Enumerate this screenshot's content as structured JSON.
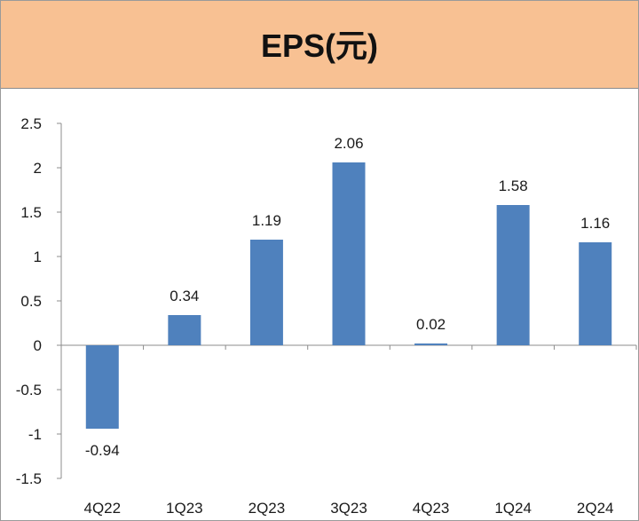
{
  "header": {
    "title": "EPS(元)"
  },
  "chart_data": {
    "type": "bar",
    "categories": [
      "4Q22",
      "1Q23",
      "2Q23",
      "3Q23",
      "4Q23",
      "1Q24",
      "2Q24"
    ],
    "values": [
      -0.94,
      0.34,
      1.19,
      2.06,
      0.02,
      1.58,
      1.16
    ],
    "data_labels": [
      "-0.94",
      "0.34",
      "1.19",
      "2.06",
      "0.02",
      "1.58",
      "1.16"
    ],
    "y_ticks": [
      "2.5",
      "2",
      "1.5",
      "1",
      "0.5",
      "0",
      "-0.5",
      "-1",
      "-1.5"
    ],
    "title": "EPS(元)",
    "xlabel": "",
    "ylabel": "",
    "ylim": [
      -1.5,
      2.5
    ],
    "grid": false,
    "legend": "none",
    "bar_color": "#4f81bd"
  }
}
